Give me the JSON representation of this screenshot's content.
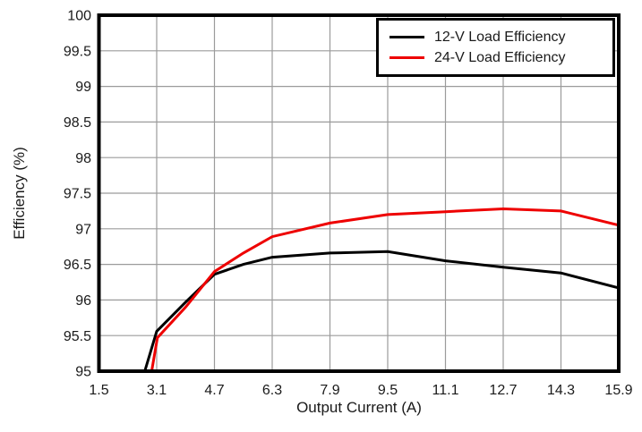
{
  "chart_data": {
    "type": "line",
    "title": "",
    "xlabel": "Output Current (A)",
    "ylabel": "Efficiency (%)",
    "xlim": [
      1.5,
      15.9
    ],
    "ylim": [
      95,
      100
    ],
    "x_tick_labels": [
      "1.5",
      "3.1",
      "4.7",
      "6.3",
      "7.9",
      "9.5",
      "11.1",
      "12.7",
      "14.3",
      "15.9"
    ],
    "y_tick_labels": [
      "95",
      "95.5",
      "96",
      "96.5",
      "97",
      "97.5",
      "98",
      "98.5",
      "99",
      "99.5",
      "100"
    ],
    "grid": true,
    "legend_position": "top-right",
    "series": [
      {
        "name": "12-V Load Efficiency",
        "color": "#000000",
        "x": [
          2.77,
          3.1,
          3.9,
          4.7,
          5.5,
          6.3,
          7.9,
          9.5,
          11.1,
          12.7,
          14.3,
          15.9
        ],
        "y": [
          95.0,
          95.56,
          95.97,
          96.36,
          96.5,
          96.6,
          96.66,
          96.68,
          96.55,
          96.46,
          96.38,
          96.17
        ]
      },
      {
        "name": "24-V Load Efficiency",
        "color": "#ee0000",
        "x": [
          2.96,
          3.12,
          3.9,
          4.7,
          5.5,
          6.3,
          7.9,
          9.5,
          11.1,
          12.7,
          14.3,
          15.9
        ],
        "y": [
          95.0,
          95.47,
          95.9,
          96.4,
          96.66,
          96.89,
          97.08,
          97.2,
          97.24,
          97.28,
          97.25,
          97.05
        ]
      }
    ]
  },
  "colors": {
    "grid": "#9b9b9b",
    "axis": "#000000",
    "text": "#1a1a1a",
    "background": "#ffffff"
  }
}
